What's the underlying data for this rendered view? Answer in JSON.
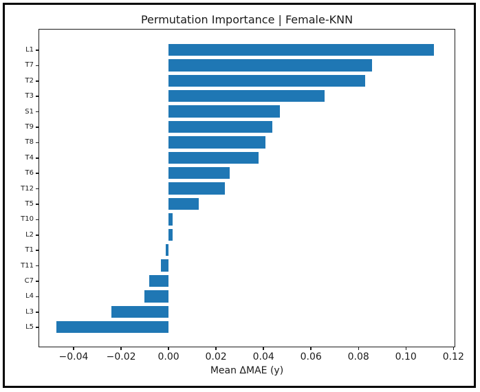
{
  "chart_data": {
    "type": "bar",
    "orientation": "horizontal",
    "title": "Permutation Importance | Female-KNN",
    "xlabel": "Mean ΔMAE (y)",
    "ylabel": "",
    "categories": [
      "L1",
      "T7",
      "T2",
      "T3",
      "S1",
      "T9",
      "T8",
      "T4",
      "T6",
      "T12",
      "T5",
      "T10",
      "L2",
      "T1",
      "T11",
      "C7",
      "L4",
      "L3",
      "L5"
    ],
    "values": [
      0.112,
      0.086,
      0.083,
      0.066,
      0.047,
      0.044,
      0.041,
      0.038,
      0.026,
      0.024,
      0.013,
      0.002,
      0.002,
      -0.001,
      -0.003,
      -0.008,
      -0.01,
      -0.024,
      -0.047
    ],
    "xlim": [
      -0.0545,
      0.1205
    ],
    "xticks": [
      -0.04,
      -0.02,
      0,
      0.02,
      0.04,
      0.06,
      0.08,
      0.1,
      0.12
    ],
    "xtick_labels": [
      "−0.04",
      "−0.02",
      "0.00",
      "0.02",
      "0.04",
      "0.06",
      "0.08",
      "0.10",
      "0.12"
    ],
    "grid": false,
    "legend_position": "none",
    "bar_color": "#1f77b4",
    "frame_color": "#000000",
    "text_color": "#1a1a1a"
  }
}
